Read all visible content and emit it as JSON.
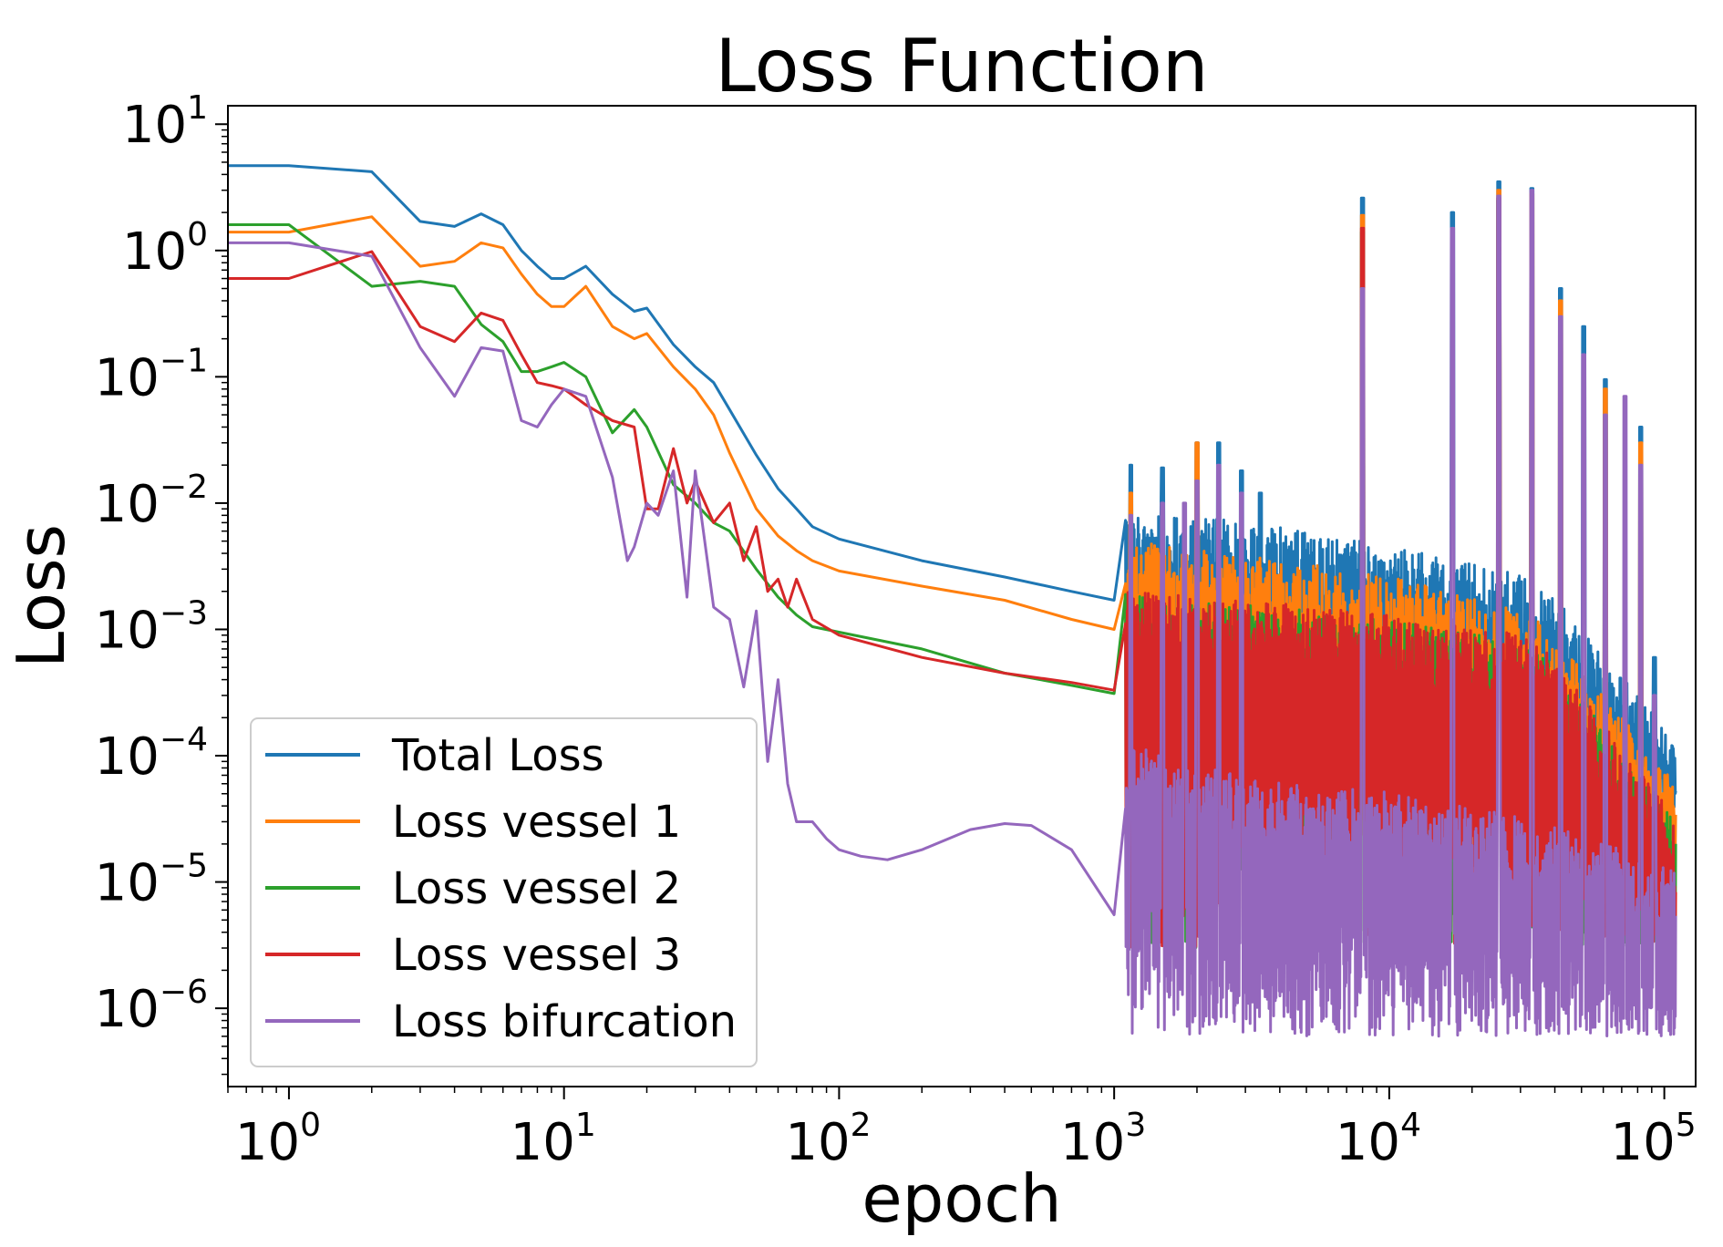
{
  "chart_data": {
    "type": "line",
    "title": "Loss Function",
    "xlabel": "epoch",
    "ylabel": "Loss",
    "xscale": "log",
    "yscale": "log",
    "xlim": [
      0.6,
      130000
    ],
    "ylim": [
      2.4e-07,
      14
    ],
    "xticks": [
      {
        "base": "10",
        "exp": "0",
        "value": 1
      },
      {
        "base": "10",
        "exp": "1",
        "value": 10
      },
      {
        "base": "10",
        "exp": "2",
        "value": 100
      },
      {
        "base": "10",
        "exp": "3",
        "value": 1000
      },
      {
        "base": "10",
        "exp": "4",
        "value": 10000
      },
      {
        "base": "10",
        "exp": "5",
        "value": 100000
      }
    ],
    "yticks": [
      {
        "base": "10",
        "exp": "1",
        "value": 10
      },
      {
        "base": "10",
        "exp": "0",
        "value": 1
      },
      {
        "base": "10",
        "exp": "−1",
        "value": 0.1
      },
      {
        "base": "10",
        "exp": "−2",
        "value": 0.01
      },
      {
        "base": "10",
        "exp": "−3",
        "value": 0.001
      },
      {
        "base": "10",
        "exp": "−4",
        "value": 0.0001
      },
      {
        "base": "10",
        "exp": "−5",
        "value": 1e-05
      },
      {
        "base": "10",
        "exp": "−6",
        "value": 1e-06
      }
    ],
    "legend_position": "lower-left",
    "series": [
      {
        "name": "Total Loss",
        "color": "#1f77b4",
        "x": [
          0.6,
          1,
          2,
          3,
          4,
          5,
          6,
          7,
          8,
          9,
          10,
          12,
          15,
          18,
          20,
          25,
          30,
          35,
          40,
          50,
          60,
          70,
          80,
          100,
          200,
          400,
          700,
          1000
        ],
        "y": [
          4.7,
          4.7,
          4.2,
          1.7,
          1.55,
          1.95,
          1.6,
          1.0,
          0.75,
          0.6,
          0.6,
          0.75,
          0.45,
          0.33,
          0.35,
          0.18,
          0.12,
          0.09,
          0.055,
          0.024,
          0.013,
          0.009,
          0.0065,
          0.0052,
          0.0035,
          0.0026,
          0.002,
          0.0017
        ],
        "noisy": {
          "x_start": 1100,
          "x_end": 110000,
          "base": [
            0.0014,
            0.0011,
            0.0007,
            0.0004,
            2.2e-05
          ],
          "low": 0.0001,
          "high_peaks": [
            [
              1150,
              0.02
            ],
            [
              1500,
              0.019
            ],
            [
              2000,
              0.03
            ],
            [
              2400,
              0.03
            ],
            [
              2900,
              0.018
            ],
            [
              3400,
              0.012
            ],
            [
              8000,
              2.6
            ],
            [
              17000,
              2.0
            ],
            [
              25000,
              3.5
            ],
            [
              33000,
              3.1
            ],
            [
              42000,
              0.5
            ],
            [
              51000,
              0.25
            ],
            [
              61000,
              0.095
            ],
            [
              82000,
              0.04
            ],
            [
              92000,
              0.0006
            ]
          ]
        }
      },
      {
        "name": "Loss vessel 1",
        "color": "#ff7f0e",
        "x": [
          0.6,
          1,
          2,
          3,
          4,
          5,
          6,
          7,
          8,
          9,
          10,
          12,
          15,
          18,
          20,
          25,
          30,
          35,
          40,
          50,
          60,
          70,
          80,
          100,
          200,
          400,
          700,
          1000
        ],
        "y": [
          1.4,
          1.4,
          1.85,
          0.75,
          0.82,
          1.15,
          1.05,
          0.65,
          0.45,
          0.36,
          0.36,
          0.52,
          0.25,
          0.2,
          0.22,
          0.12,
          0.08,
          0.05,
          0.025,
          0.009,
          0.0055,
          0.0042,
          0.0035,
          0.0029,
          0.0022,
          0.0017,
          0.0012,
          0.001
        ],
        "noisy": {
          "x_start": 1100,
          "x_end": 110000,
          "base": [
            0.0008,
            0.0006,
            0.0004,
            0.0002,
            1e-05
          ],
          "low": 8e-05,
          "high_peaks": [
            [
              1150,
              0.012
            ],
            [
              2000,
              0.03
            ],
            [
              8000,
              1.9
            ],
            [
              25000,
              3.0
            ],
            [
              33000,
              2.8
            ],
            [
              42000,
              0.4
            ],
            [
              61000,
              0.08
            ],
            [
              82000,
              0.03
            ]
          ]
        }
      },
      {
        "name": "Loss vessel 2",
        "color": "#2ca02c",
        "x": [
          0.6,
          1,
          2,
          3,
          4,
          5,
          6,
          7,
          8,
          9,
          10,
          12,
          15,
          18,
          20,
          25,
          30,
          35,
          40,
          50,
          60,
          70,
          80,
          100,
          200,
          400,
          700,
          1000
        ],
        "y": [
          1.6,
          1.6,
          0.52,
          0.57,
          0.52,
          0.26,
          0.19,
          0.11,
          0.11,
          0.12,
          0.13,
          0.1,
          0.036,
          0.055,
          0.04,
          0.014,
          0.01,
          0.007,
          0.006,
          0.003,
          0.0018,
          0.0013,
          0.00105,
          0.00095,
          0.0007,
          0.00045,
          0.00036,
          0.00031
        ],
        "noisy": {
          "x_start": 1100,
          "x_end": 110000,
          "base": [
            0.0003,
            0.00025,
            0.00018,
            0.00012,
            5e-06
          ],
          "low": 3e-06,
          "high_peaks": [
            [
              8000,
              1.4
            ],
            [
              25000,
              2.5
            ]
          ]
        }
      },
      {
        "name": "Loss vessel 3",
        "color": "#d62728",
        "x": [
          0.6,
          1,
          2,
          3,
          4,
          5,
          6,
          7,
          8,
          9,
          10,
          12,
          15,
          18,
          20,
          22,
          25,
          28,
          30,
          35,
          40,
          45,
          50,
          55,
          60,
          65,
          70,
          80,
          100,
          200,
          400,
          700,
          1000
        ],
        "y": [
          0.6,
          0.6,
          0.98,
          0.25,
          0.19,
          0.32,
          0.28,
          0.15,
          0.09,
          0.085,
          0.08,
          0.06,
          0.045,
          0.04,
          0.009,
          0.009,
          0.027,
          0.01,
          0.015,
          0.007,
          0.01,
          0.0035,
          0.0065,
          0.002,
          0.0025,
          0.0015,
          0.0025,
          0.0012,
          0.0009,
          0.0006,
          0.00045,
          0.00038,
          0.00033
        ],
        "noisy": {
          "x_start": 1100,
          "x_end": 110000,
          "base": [
            0.00032,
            0.00027,
            0.0002,
            0.00014,
            5e-06
          ],
          "low": 3e-06,
          "high_peaks": [
            [
              8000,
              1.5
            ],
            [
              25000,
              2.6
            ]
          ]
        }
      },
      {
        "name": "Loss bifurcation",
        "color": "#9467bd",
        "x": [
          0.6,
          1,
          2,
          3,
          4,
          5,
          6,
          7,
          8,
          9,
          10,
          12,
          15,
          17,
          18,
          20,
          22,
          25,
          28,
          30,
          35,
          40,
          45,
          50,
          55,
          60,
          65,
          70,
          80,
          90,
          100,
          120,
          150,
          200,
          300,
          400,
          500,
          700,
          1000
        ],
        "y": [
          1.15,
          1.15,
          0.9,
          0.17,
          0.07,
          0.17,
          0.16,
          0.045,
          0.04,
          0.06,
          0.08,
          0.07,
          0.016,
          0.0035,
          0.0045,
          0.01,
          0.008,
          0.018,
          0.0018,
          0.018,
          0.0015,
          0.0012,
          0.00035,
          0.0014,
          9e-05,
          0.0004,
          6e-05,
          3e-05,
          3e-05,
          2.2e-05,
          1.8e-05,
          1.6e-05,
          1.5e-05,
          1.8e-05,
          2.6e-05,
          2.9e-05,
          2.8e-05,
          1.8e-05,
          5.5e-06
        ],
        "noisy": {
          "x_start": 1100,
          "x_end": 110000,
          "base": [
            2e-05,
            1e-05,
            8e-06,
            5e-06,
            2e-06
          ],
          "low": 6e-07,
          "high_peaks": [
            [
              1150,
              0.008
            ],
            [
              1500,
              0.01
            ],
            [
              1800,
              0.01
            ],
            [
              2000,
              0.015
            ],
            [
              2400,
              0.02
            ],
            [
              2900,
              0.012
            ],
            [
              8000,
              0.5
            ],
            [
              17000,
              1.5
            ],
            [
              25000,
              2.7
            ],
            [
              33000,
              3.0
            ],
            [
              42000,
              0.3
            ],
            [
              51000,
              0.15
            ],
            [
              61000,
              0.05
            ],
            [
              72000,
              0.07
            ],
            [
              82000,
              0.02
            ],
            [
              92000,
              0.0003
            ]
          ]
        }
      }
    ]
  }
}
